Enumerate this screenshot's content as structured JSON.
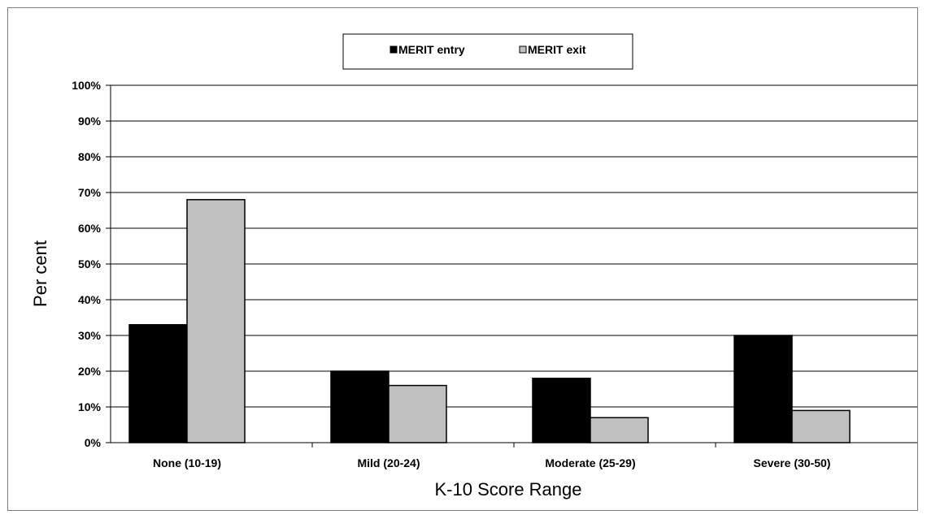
{
  "chart_data": {
    "type": "bar",
    "categories": [
      "None (10-19)",
      "Mild (20-24)",
      "Moderate (25-29)",
      "Severe (30-50)"
    ],
    "series": [
      {
        "name": "MERIT entry",
        "values": [
          33,
          20,
          18,
          30
        ],
        "color": "#000000"
      },
      {
        "name": "MERIT exit",
        "values": [
          68,
          16,
          7,
          9
        ],
        "color": "#c0c0c0"
      }
    ],
    "xlabel": "K-10 Score Range",
    "ylabel": "Per cent",
    "ylim": [
      0,
      100
    ],
    "yticks": [
      0,
      10,
      20,
      30,
      40,
      50,
      60,
      70,
      80,
      90,
      100
    ],
    "ytick_format": "%",
    "grid": true,
    "legend": "top-center"
  }
}
